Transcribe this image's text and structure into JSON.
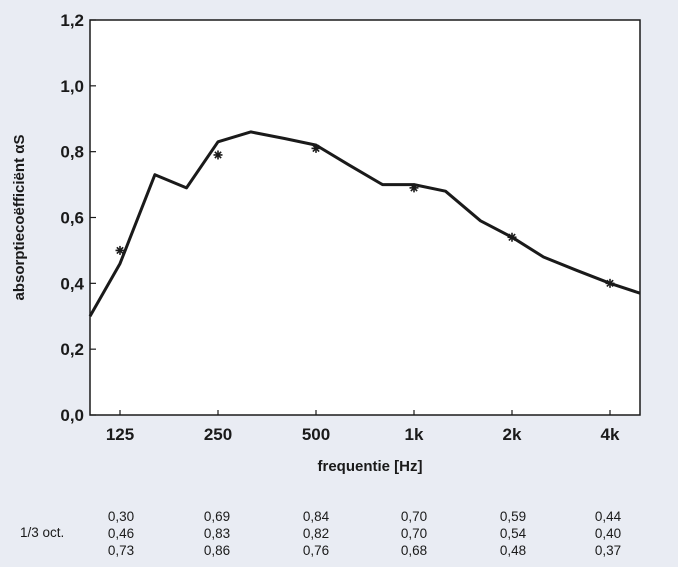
{
  "chart_data": {
    "type": "line",
    "ylabel": "absorptiecoëfficiënt αS",
    "xlabel": "frequentie [Hz]",
    "ylim": [
      0,
      1.2
    ],
    "yticks": [
      "0,0",
      "0,2",
      "0,4",
      "0,6",
      "0,8",
      "1,0",
      "1,2"
    ],
    "yticks_values": [
      0,
      0.2,
      0.4,
      0.6,
      0.8,
      1.0,
      1.2
    ],
    "xticks": [
      "125",
      "250",
      "500",
      "1k",
      "2k",
      "4k"
    ],
    "xticks_hz": [
      125,
      250,
      500,
      1000,
      2000,
      4000
    ],
    "grid": false,
    "series": [
      {
        "style": "line",
        "x_hz": [
          100,
          125,
          160,
          200,
          250,
          315,
          400,
          500,
          630,
          800,
          1000,
          1250,
          1600,
          2000,
          2500,
          3150,
          4000,
          5000
        ],
        "values": [
          0.3,
          0.46,
          0.73,
          0.69,
          0.83,
          0.86,
          0.84,
          0.82,
          0.76,
          0.7,
          0.7,
          0.68,
          0.59,
          0.54,
          0.48,
          0.44,
          0.4,
          0.37
        ]
      },
      {
        "style": "markers",
        "marker": "asterisk",
        "x_hz": [
          125,
          250,
          500,
          1000,
          2000,
          4000
        ],
        "values": [
          0.5,
          0.79,
          0.81,
          0.69,
          0.54,
          0.4
        ]
      }
    ]
  },
  "table": {
    "row_label": "1/3 oct.",
    "columns": [
      [
        "0,30",
        "0,46",
        "0,73"
      ],
      [
        "0,69",
        "0,83",
        "0,86"
      ],
      [
        "0,84",
        "0,82",
        "0,76"
      ],
      [
        "0,70",
        "0,70",
        "0,68"
      ],
      [
        "0,59",
        "0,54",
        "0,48"
      ],
      [
        "0,44",
        "0,40",
        "0,37"
      ]
    ]
  },
  "colors": {
    "background": "#e9ecf3",
    "plot_background": "#ffffff",
    "line": "#1a1a1a",
    "text": "#1a1a1a"
  }
}
